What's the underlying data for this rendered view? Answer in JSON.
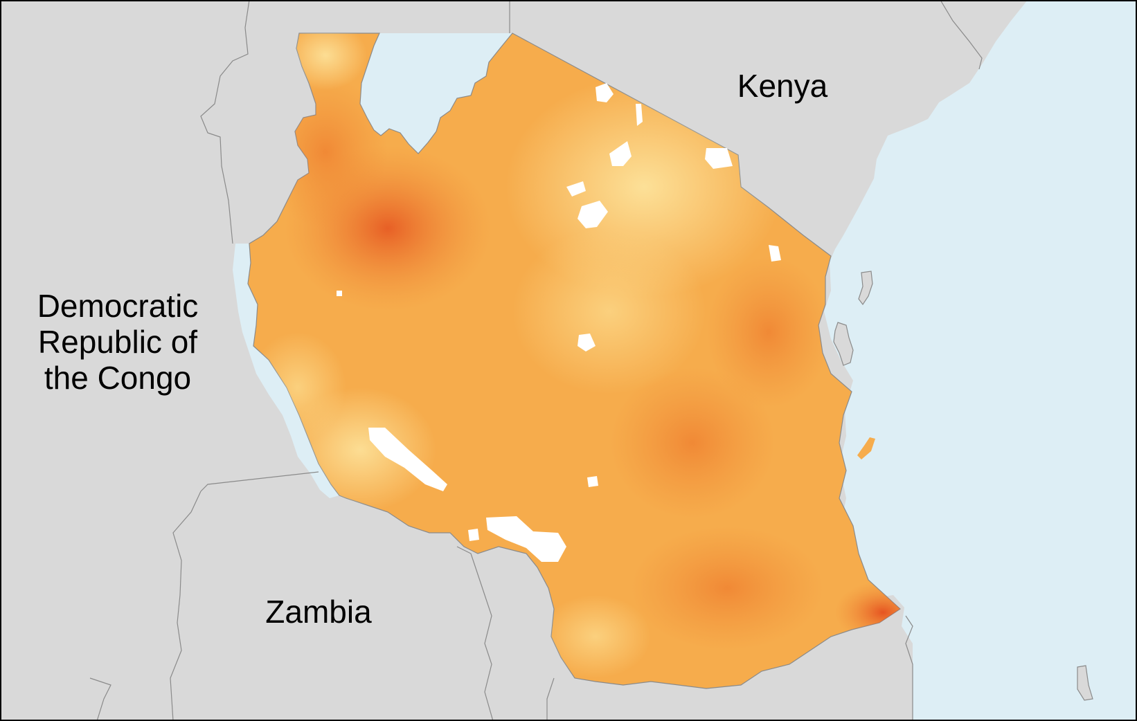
{
  "map": {
    "colors": {
      "land": "#d9d9d9",
      "water": "#ddeef5",
      "border": "#8a8a8a",
      "frame": "#000000",
      "heat_low": "#fde6a0",
      "heat_mid": "#f6ac4c",
      "heat_high": "#e5521f",
      "no_data": "#ffffff"
    },
    "labels": {
      "kenya": "Kenya",
      "congo_line1": "Democratic",
      "congo_line2": "Republic of",
      "congo_line3": "the Congo",
      "zambia": "Zambia"
    }
  }
}
